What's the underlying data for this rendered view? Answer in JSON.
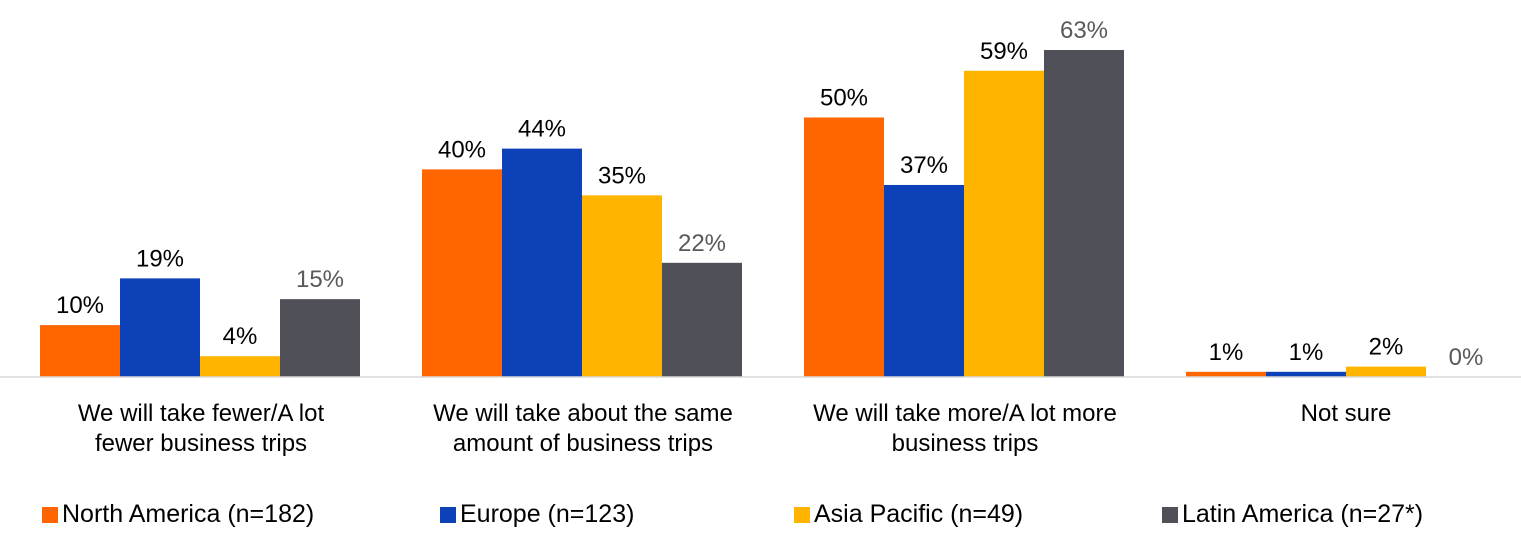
{
  "chart_data": {
    "type": "bar",
    "categories": [
      [
        "We will take fewer/A lot",
        "fewer business trips"
      ],
      [
        "We will take about the same",
        "amount of business trips"
      ],
      [
        "We will take more/A lot more",
        "business trips"
      ],
      [
        "Not sure"
      ]
    ],
    "series": [
      {
        "name": "North America (n=182)",
        "color": "#ff6600",
        "values": [
          10,
          40,
          50,
          1
        ],
        "labels": [
          "10%",
          "40%",
          "50%",
          "1%"
        ]
      },
      {
        "name": "Europe (n=123)",
        "color": "#0d41b7",
        "values": [
          19,
          44,
          37,
          1
        ],
        "labels": [
          "19%",
          "44%",
          "37%",
          "1%"
        ]
      },
      {
        "name": "Asia Pacific (n=49)",
        "color": "#ffb400",
        "values": [
          4,
          35,
          59,
          2
        ],
        "labels": [
          "4%",
          "35%",
          "59%",
          "2%"
        ]
      },
      {
        "name": "Latin America (n=27*)",
        "color": "#505158",
        "values": [
          15,
          22,
          63,
          0
        ],
        "labels": [
          "15%",
          "22%",
          "63%",
          "0%"
        ]
      }
    ],
    "value_label_colors": [
      "#000000",
      "#000000",
      "#000000",
      "#595959"
    ],
    "ylim": [
      0,
      63
    ],
    "grid": false,
    "legend_position": "bottom"
  }
}
